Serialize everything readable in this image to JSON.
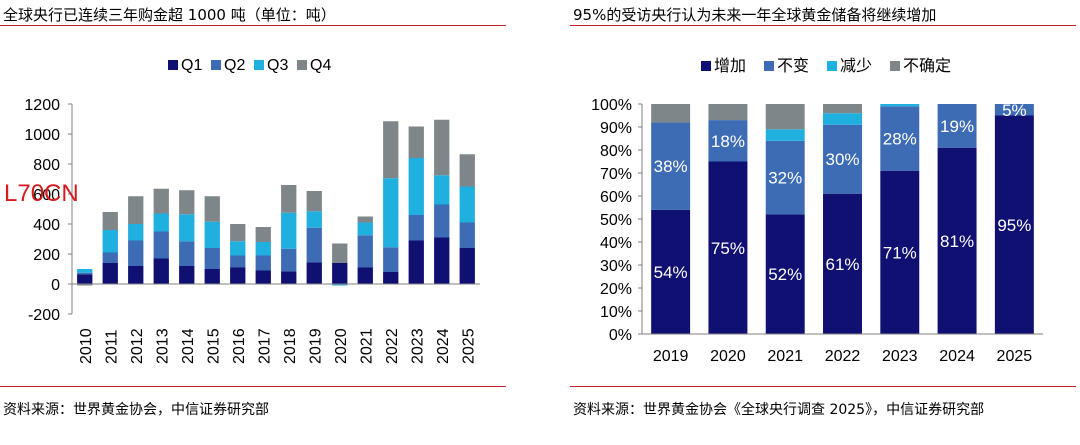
{
  "left": {
    "title": "全球央行已连续三年购金超 1000 吨（单位：吨）",
    "source": "资料来源：世界黄金协会，中信证券研究部",
    "watermark": "L70CN",
    "chart_data": {
      "type": "bar",
      "stacked": true,
      "title": "",
      "xlabel": "",
      "ylabel": "",
      "ylim": [
        -200,
        1200
      ],
      "yticks": [
        -200,
        0,
        200,
        400,
        600,
        800,
        1000,
        1200
      ],
      "legend_position": "top",
      "grid": false,
      "categories": [
        "2010",
        "2011",
        "2012",
        "2013",
        "2014",
        "2015",
        "2016",
        "2017",
        "2018",
        "2019",
        "2020",
        "2021",
        "2022",
        "2023",
        "2024",
        "2025"
      ],
      "series": [
        {
          "name": "Q1",
          "color": "#101073",
          "values": [
            65,
            140,
            120,
            170,
            120,
            100,
            110,
            90,
            85,
            145,
            140,
            110,
            80,
            290,
            310,
            240
          ]
        },
        {
          "name": "Q2",
          "color": "#3d6cb5",
          "values": [
            10,
            70,
            170,
            180,
            165,
            140,
            80,
            100,
            150,
            230,
            0,
            215,
            165,
            170,
            220,
            170
          ]
        },
        {
          "name": "Q3",
          "color": "#1fb0e0",
          "values": [
            25,
            150,
            110,
            120,
            180,
            175,
            95,
            90,
            240,
            110,
            -10,
            85,
            460,
            380,
            195,
            240
          ]
        },
        {
          "name": "Q4",
          "color": "#7f8689",
          "values": [
            -10,
            120,
            185,
            165,
            160,
            170,
            115,
            100,
            185,
            135,
            130,
            40,
            380,
            210,
            370,
            215
          ]
        }
      ]
    }
  },
  "right": {
    "title": "95%的受访央行认为未来一年全球黄金储备将继续增加",
    "source": "资料来源：世界黄金协会《全球央行调查 2025》，中信证券研究部",
    "chart_data": {
      "type": "bar",
      "stacked": true,
      "percent": true,
      "title": "",
      "xlabel": "",
      "ylabel": "",
      "ylim": [
        0,
        100
      ],
      "yticks": [
        0,
        10,
        20,
        30,
        40,
        50,
        60,
        70,
        80,
        90,
        100
      ],
      "legend_position": "top",
      "grid": false,
      "categories": [
        "2019",
        "2020",
        "2021",
        "2022",
        "2023",
        "2024",
        "2025"
      ],
      "series": [
        {
          "name": "增加",
          "color": "#101073",
          "values": [
            54,
            75,
            52,
            61,
            71,
            81,
            95
          ],
          "labels": [
            "54%",
            "75%",
            "52%",
            "61%",
            "71%",
            "81%",
            "95%"
          ]
        },
        {
          "name": "不变",
          "color": "#3d6cb5",
          "values": [
            38,
            18,
            32,
            30,
            28,
            19,
            5
          ],
          "labels": [
            "38%",
            "18%",
            "32%",
            "30%",
            "28%",
            "19%",
            "5%"
          ]
        },
        {
          "name": "减少",
          "color": "#1fb0e0",
          "values": [
            0,
            0,
            5,
            5,
            1,
            0,
            0
          ],
          "labels": []
        },
        {
          "name": "不确定",
          "color": "#7f8689",
          "values": [
            8,
            7,
            11,
            4,
            0,
            0,
            0
          ],
          "labels": []
        }
      ]
    }
  }
}
